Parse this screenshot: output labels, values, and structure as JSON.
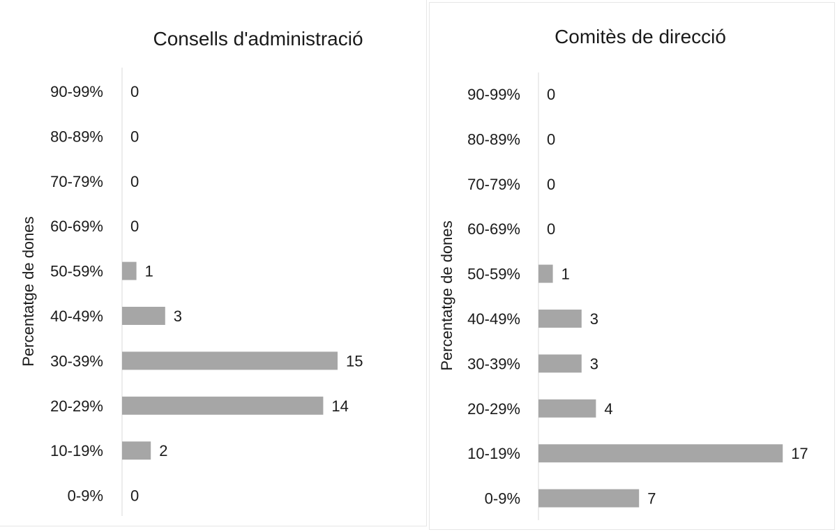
{
  "chart_data": [
    {
      "type": "bar",
      "orientation": "horizontal",
      "title": "Consells d'administració",
      "ylabel": "Percentatge de dones",
      "xlabel": "",
      "categories": [
        "90-99%",
        "80-89%",
        "70-79%",
        "60-69%",
        "50-59%",
        "40-49%",
        "30-39%",
        "20-29%",
        "10-19%",
        "0-9%"
      ],
      "values": [
        0,
        0,
        0,
        0,
        1,
        3,
        15,
        14,
        2,
        0
      ],
      "bar_color": "#a6a6a6",
      "axis_color": "#d9d9d9",
      "grid": false,
      "data_labels": true
    },
    {
      "type": "bar",
      "orientation": "horizontal",
      "title": "Comitès de direcció",
      "ylabel": "Percentatge de dones",
      "xlabel": "",
      "categories": [
        "90-99%",
        "80-89%",
        "70-79%",
        "60-69%",
        "50-59%",
        "40-49%",
        "30-39%",
        "20-29%",
        "10-19%",
        "0-9%"
      ],
      "values": [
        0,
        0,
        0,
        0,
        1,
        3,
        3,
        4,
        17,
        7
      ],
      "bar_color": "#a6a6a6",
      "axis_color": "#d9d9d9",
      "grid": false,
      "data_labels": true
    }
  ]
}
